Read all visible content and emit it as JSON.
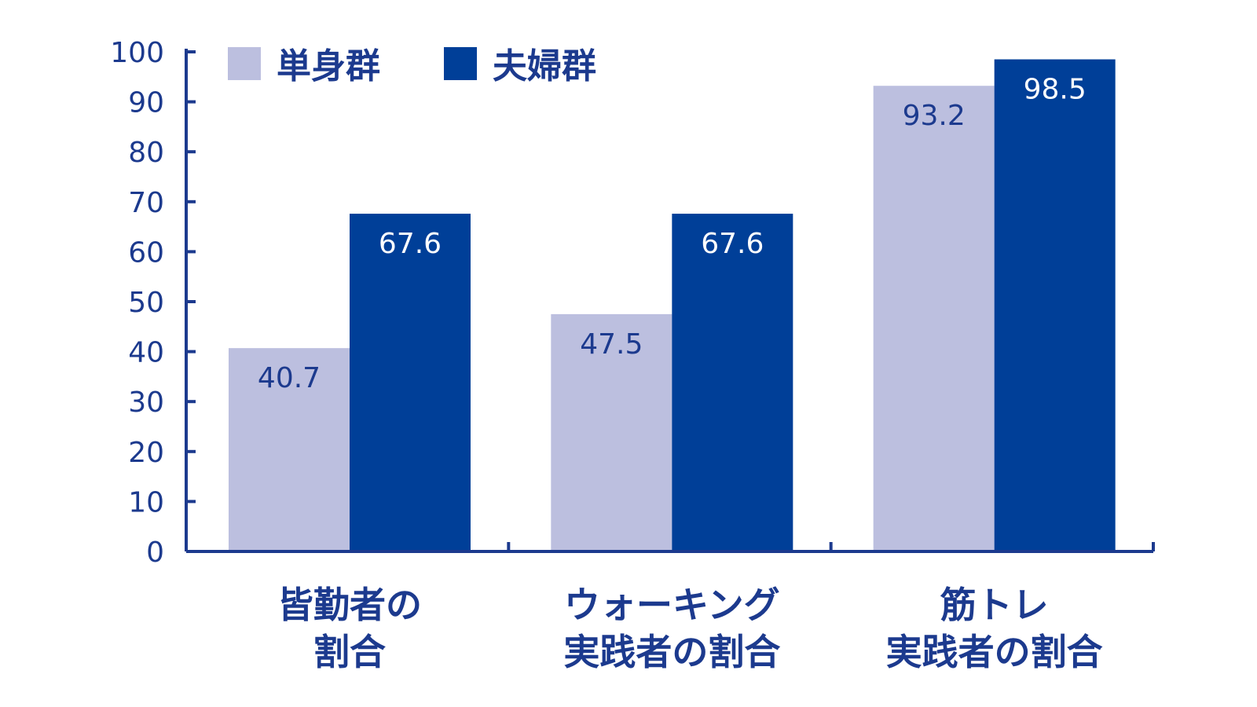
{
  "chart_data": {
    "type": "bar",
    "categories": [
      [
        "皆勤者の",
        "割合"
      ],
      [
        "ウォーキング",
        "実践者の割合"
      ],
      [
        "筋トレ",
        "実践者の割合"
      ]
    ],
    "series": [
      {
        "name": "単身群",
        "values": [
          40.7,
          47.5,
          93.2
        ],
        "value_labels": [
          "40.7",
          "47.5",
          "93.2"
        ],
        "color": "#bcbfdf",
        "label_color": "#1c3a8e"
      },
      {
        "name": "夫婦群",
        "values": [
          67.6,
          67.6,
          98.5
        ],
        "value_labels": [
          "67.6",
          "67.6",
          "98.5"
        ],
        "color": "#003f98",
        "label_color": "#ffffff"
      }
    ],
    "ylim": [
      0,
      100
    ],
    "yticks": [
      "0",
      "10",
      "20",
      "30",
      "40",
      "50",
      "60",
      "70",
      "80",
      "90",
      "100"
    ],
    "xlabel": "",
    "ylabel": "",
    "title": "",
    "grid": false,
    "legend": "top-left",
    "axis_color": "#1c3a8e"
  }
}
